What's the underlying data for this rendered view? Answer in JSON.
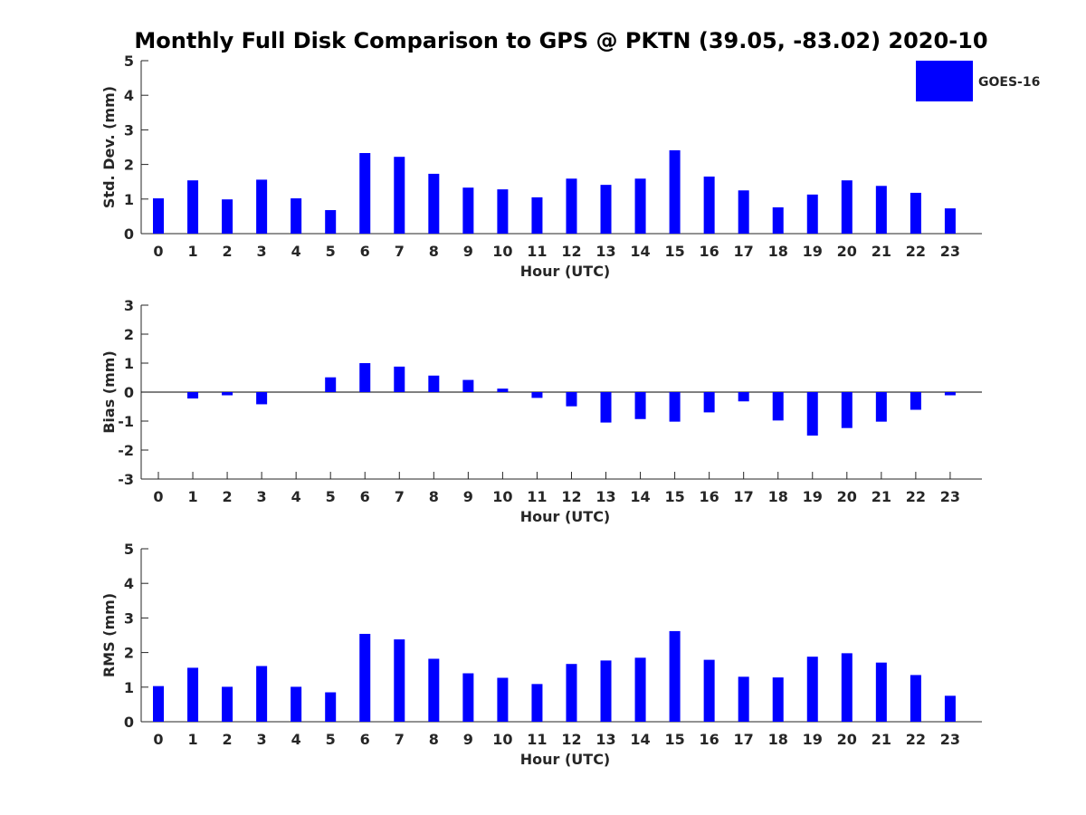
{
  "chart_data": {
    "title": "Monthly Full Disk Comparison to GPS @ PKTN (39.05, -83.02) 2020-10",
    "legend": {
      "label": "GOES-16",
      "placement": "top-right",
      "color": "#0000ff"
    },
    "categories": [
      "0",
      "1",
      "2",
      "3",
      "4",
      "5",
      "6",
      "7",
      "8",
      "9",
      "10",
      "11",
      "12",
      "13",
      "14",
      "15",
      "16",
      "17",
      "18",
      "19",
      "20",
      "21",
      "22",
      "23"
    ],
    "panels": [
      {
        "type": "bar",
        "xlabel": "Hour (UTC)",
        "ylabel": "Std. Dev. (mm)",
        "ylim": [
          0,
          5
        ],
        "yticks": [
          0,
          1,
          2,
          3,
          4,
          5
        ],
        "series": [
          {
            "name": "GOES-16",
            "values": [
              1.02,
              1.54,
              0.99,
              1.56,
              1.02,
              0.68,
              2.33,
              2.22,
              1.73,
              1.33,
              1.28,
              1.05,
              1.59,
              1.41,
              1.59,
              2.41,
              1.65,
              1.25,
              0.76,
              1.13,
              1.54,
              1.38,
              1.18,
              0.73
            ]
          }
        ]
      },
      {
        "type": "bar",
        "xlabel": "Hour (UTC)",
        "ylabel": "Bias (mm)",
        "ylim": [
          -3,
          3
        ],
        "yticks": [
          -3,
          -2,
          -1,
          0,
          1,
          2,
          3
        ],
        "zero_line": true,
        "series": [
          {
            "name": "GOES-16",
            "values": [
              0,
              -0.22,
              -0.11,
              -0.42,
              0,
              0.51,
              1.0,
              0.88,
              0.57,
              0.42,
              0.12,
              -0.2,
              -0.49,
              -1.05,
              -0.93,
              -1.02,
              -0.7,
              -0.32,
              -0.98,
              -1.5,
              -1.24,
              -1.02,
              -0.61,
              -0.11
            ]
          }
        ]
      },
      {
        "type": "bar",
        "xlabel": "Hour (UTC)",
        "ylabel": "RMS (mm)",
        "ylim": [
          0,
          5
        ],
        "yticks": [
          0,
          1,
          2,
          3,
          4,
          5
        ],
        "series": [
          {
            "name": "GOES-16",
            "values": [
              1.03,
              1.56,
              1.01,
              1.61,
              1.01,
              0.85,
              2.54,
              2.38,
              1.82,
              1.4,
              1.27,
              1.09,
              1.67,
              1.77,
              1.85,
              2.62,
              1.79,
              1.3,
              1.28,
              1.88,
              1.98,
              1.71,
              1.35,
              0.75
            ]
          }
        ]
      }
    ]
  }
}
